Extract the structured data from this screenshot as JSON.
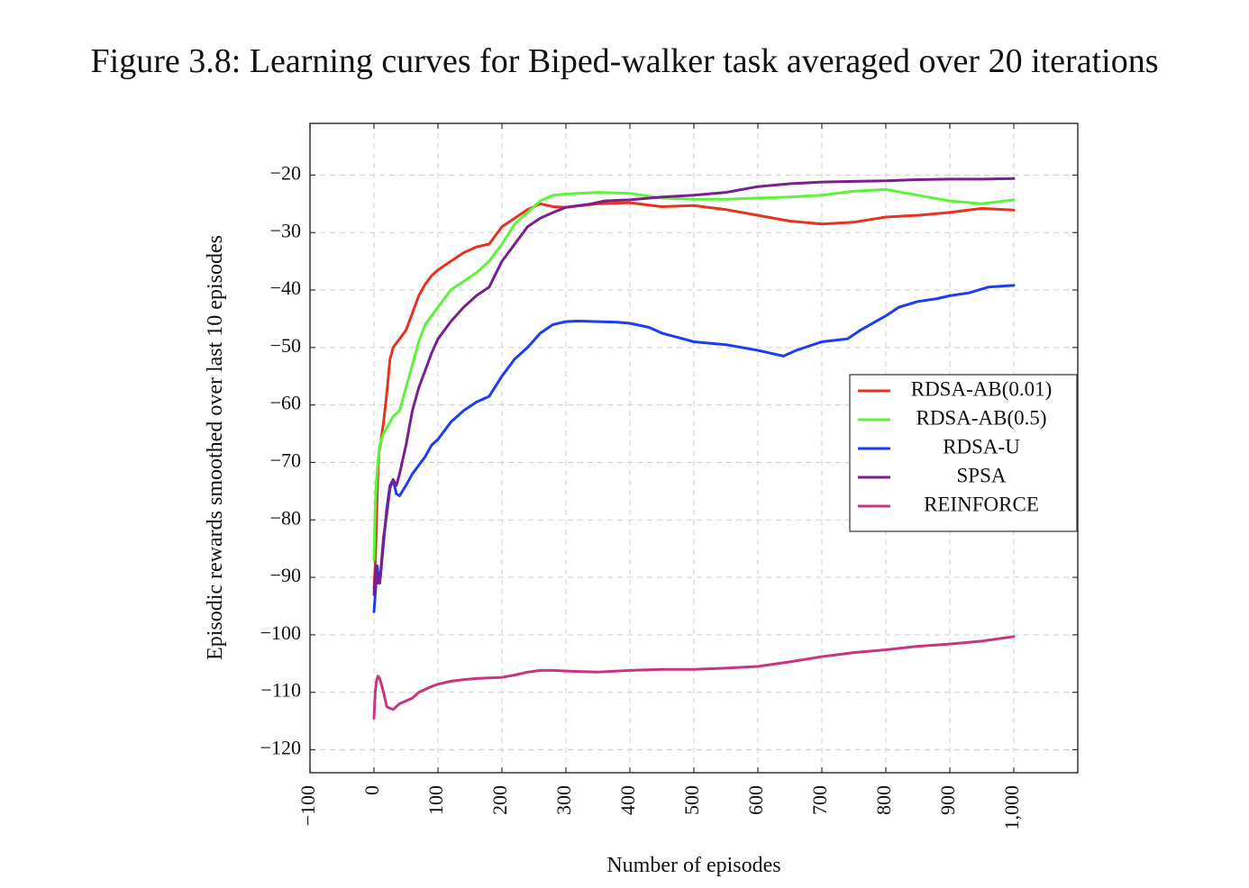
{
  "chart_data": {
    "type": "line",
    "title": "Figure 3.8: Learning curves for Biped-walker task averaged over 20 iterations",
    "xlabel": "Number of episodes",
    "ylabel": "Episodic rewards smoothed over last 10 episodes",
    "xlim": [
      -100,
      1100
    ],
    "ylim": [
      -124,
      -11
    ],
    "x_ticks": [
      -100,
      0,
      100,
      200,
      300,
      400,
      500,
      600,
      700,
      800,
      900,
      1000
    ],
    "x_tick_labels": [
      "−100",
      "0",
      "100",
      "200",
      "300",
      "400",
      "500",
      "600",
      "700",
      "800",
      "900",
      "1,000"
    ],
    "y_ticks": [
      -120,
      -110,
      -100,
      -90,
      -80,
      -70,
      -60,
      -50,
      -40,
      -30,
      -20
    ],
    "y_tick_labels": [
      "−120",
      "−110",
      "−100",
      "−90",
      "−80",
      "−70",
      "−60",
      "−50",
      "−40",
      "−30",
      "−20"
    ],
    "grid": true,
    "legend_position": "right",
    "series": [
      {
        "name": "RDSA-AB(0.01)",
        "color": "#e8321f",
        "x": [
          0,
          2,
          4,
          6,
          8,
          10,
          15,
          20,
          25,
          30,
          40,
          50,
          60,
          70,
          80,
          90,
          100,
          120,
          140,
          160,
          180,
          200,
          220,
          240,
          260,
          280,
          300,
          350,
          400,
          450,
          500,
          550,
          600,
          650,
          700,
          750,
          800,
          850,
          900,
          950,
          1000
        ],
        "y": [
          -92,
          -88,
          -80,
          -72,
          -68,
          -67,
          -63,
          -58,
          -52,
          -50,
          -48.5,
          -47,
          -44,
          -41,
          -39,
          -37.5,
          -36.5,
          -35,
          -33.5,
          -32.5,
          -32,
          -29,
          -27.5,
          -26,
          -25,
          -25.5,
          -25.6,
          -25,
          -24.8,
          -25.5,
          -25.3,
          -26,
          -27,
          -28,
          -28.5,
          -28.2,
          -27.3,
          -27,
          -26.5,
          -25.8,
          -26.1
        ]
      },
      {
        "name": "RDSA-AB(0.5)",
        "color": "#5af536",
        "x": [
          0,
          2,
          4,
          6,
          8,
          10,
          15,
          20,
          30,
          40,
          50,
          60,
          70,
          80,
          90,
          100,
          120,
          140,
          160,
          180,
          200,
          220,
          240,
          260,
          280,
          300,
          350,
          400,
          450,
          500,
          550,
          600,
          650,
          700,
          750,
          800,
          850,
          900,
          950,
          1000
        ],
        "y": [
          -87,
          -78,
          -73,
          -70,
          -68,
          -66.5,
          -65,
          -64,
          -62,
          -61,
          -57,
          -53,
          -49,
          -46,
          -44.5,
          -43,
          -40,
          -38.5,
          -37,
          -35,
          -32,
          -28.5,
          -26.5,
          -24.5,
          -23.5,
          -23.3,
          -23,
          -23.2,
          -24,
          -24.2,
          -24.2,
          -24,
          -23.8,
          -23.5,
          -22.8,
          -22.5,
          -23.5,
          -24.5,
          -25,
          -24.3
        ]
      },
      {
        "name": "RDSA-U",
        "color": "#1b3df5",
        "x": [
          0,
          2,
          5,
          8,
          10,
          15,
          20,
          25,
          30,
          35,
          40,
          50,
          60,
          70,
          80,
          90,
          100,
          120,
          140,
          160,
          180,
          200,
          220,
          240,
          260,
          280,
          300,
          320,
          350,
          380,
          400,
          430,
          450,
          500,
          550,
          600,
          620,
          640,
          660,
          700,
          740,
          760,
          800,
          820,
          850,
          880,
          900,
          930,
          960,
          1000
        ],
        "y": [
          -96,
          -93,
          -88,
          -91,
          -90,
          -84,
          -78,
          -74,
          -73,
          -75.5,
          -75.8,
          -74,
          -72,
          -70.5,
          -69,
          -67,
          -66,
          -63,
          -61,
          -59.5,
          -58.5,
          -55,
          -52,
          -50,
          -47.5,
          -46,
          -45.5,
          -45.4,
          -45.5,
          -45.6,
          -45.8,
          -46.5,
          -47.5,
          -49,
          -49.5,
          -50.5,
          -51,
          -51.5,
          -50.5,
          -49,
          -48.5,
          -47,
          -44.5,
          -43,
          -42,
          -41.5,
          -41,
          -40.5,
          -39.5,
          -39.2
        ]
      },
      {
        "name": "SPSA",
        "color": "#7a1f8f",
        "x": [
          0,
          3,
          6,
          9,
          12,
          15,
          20,
          25,
          30,
          35,
          40,
          50,
          60,
          70,
          80,
          90,
          100,
          120,
          140,
          160,
          180,
          200,
          220,
          240,
          260,
          280,
          300,
          320,
          340,
          360,
          400,
          450,
          500,
          550,
          600,
          650,
          700,
          750,
          800,
          850,
          900,
          950,
          1000
        ],
        "y": [
          -93,
          -88,
          -91,
          -91,
          -87,
          -83,
          -79,
          -74.5,
          -73,
          -74,
          -72,
          -67,
          -61,
          -57,
          -54,
          -51,
          -48.5,
          -45.5,
          -43,
          -41,
          -39.5,
          -35,
          -32,
          -29,
          -27.5,
          -26.5,
          -25.6,
          -25.3,
          -25,
          -24.5,
          -24.3,
          -23.8,
          -23.5,
          -23,
          -22,
          -21.5,
          -21.2,
          -21.1,
          -21,
          -20.8,
          -20.7,
          -20.7,
          -20.6
        ]
      },
      {
        "name": "REINFORCE",
        "color": "#c8357f",
        "x": [
          0,
          2,
          4,
          6,
          8,
          10,
          15,
          20,
          25,
          30,
          40,
          50,
          60,
          70,
          80,
          90,
          100,
          120,
          140,
          160,
          180,
          200,
          220,
          240,
          260,
          280,
          300,
          350,
          400,
          450,
          500,
          550,
          600,
          650,
          700,
          750,
          800,
          850,
          900,
          950,
          1000
        ],
        "y": [
          -114.5,
          -110,
          -108,
          -107.2,
          -107.4,
          -108,
          -110,
          -112.5,
          -112.8,
          -113,
          -112,
          -111.5,
          -111,
          -110,
          -109.5,
          -109,
          -108.6,
          -108.1,
          -107.8,
          -107.6,
          -107.5,
          -107.4,
          -107,
          -106.5,
          -106.2,
          -106.2,
          -106.3,
          -106.5,
          -106.2,
          -106.0,
          -106.0,
          -105.8,
          -105.5,
          -104.7,
          -103.8,
          -103.1,
          -102.6,
          -102.0,
          -101.6,
          -101.1,
          -100.3
        ]
      }
    ]
  }
}
